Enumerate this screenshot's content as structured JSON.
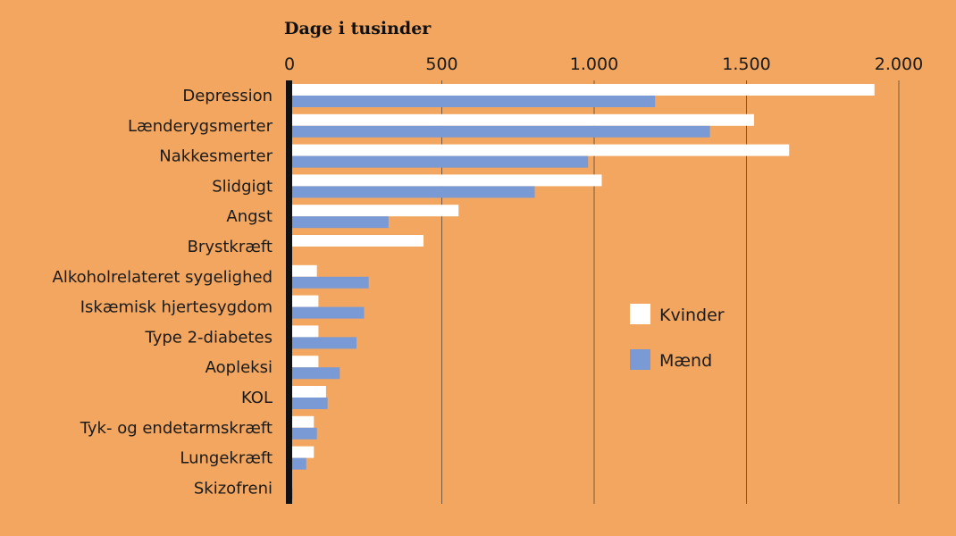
{
  "colors": {
    "background": "#F2A65F",
    "kvinder": "#FFFFFF",
    "maend": "#7A9AD6",
    "gridline": "#7a5a3a",
    "axis": "#111111"
  },
  "chart_data": {
    "type": "bar",
    "orientation": "horizontal",
    "title": "Dage i tusinder",
    "xlim": [
      0,
      2000
    ],
    "xticks": [
      0,
      500,
      1000,
      1500,
      2000
    ],
    "xtick_labels": [
      "0",
      "500",
      "1.000",
      "1.500",
      "2.000"
    ],
    "grid": true,
    "legend_position": "right",
    "categories": [
      "Depression",
      "Lænderygsmerter",
      "Nakkesmerter",
      "Slidgigt",
      "Angst",
      "Brystkræft",
      "Alkoholrelateret sygelighed",
      "Iskæmisk hjertesygdom",
      "Type 2-diabetes",
      "Aopleksi",
      "KOL",
      "Tyk- og endetarmskræft",
      "Lungekræft",
      "Skizofreni"
    ],
    "series": [
      {
        "name": "Kvinder",
        "color": "#FFFFFF",
        "values": [
          1920,
          1525,
          1640,
          1025,
          555,
          440,
          90,
          95,
          95,
          95,
          120,
          80,
          80,
          5
        ]
      },
      {
        "name": "Mænd",
        "color": "#7A9AD6",
        "values": [
          1200,
          1380,
          980,
          805,
          325,
          0,
          260,
          245,
          220,
          165,
          125,
          90,
          55,
          10
        ]
      }
    ]
  }
}
